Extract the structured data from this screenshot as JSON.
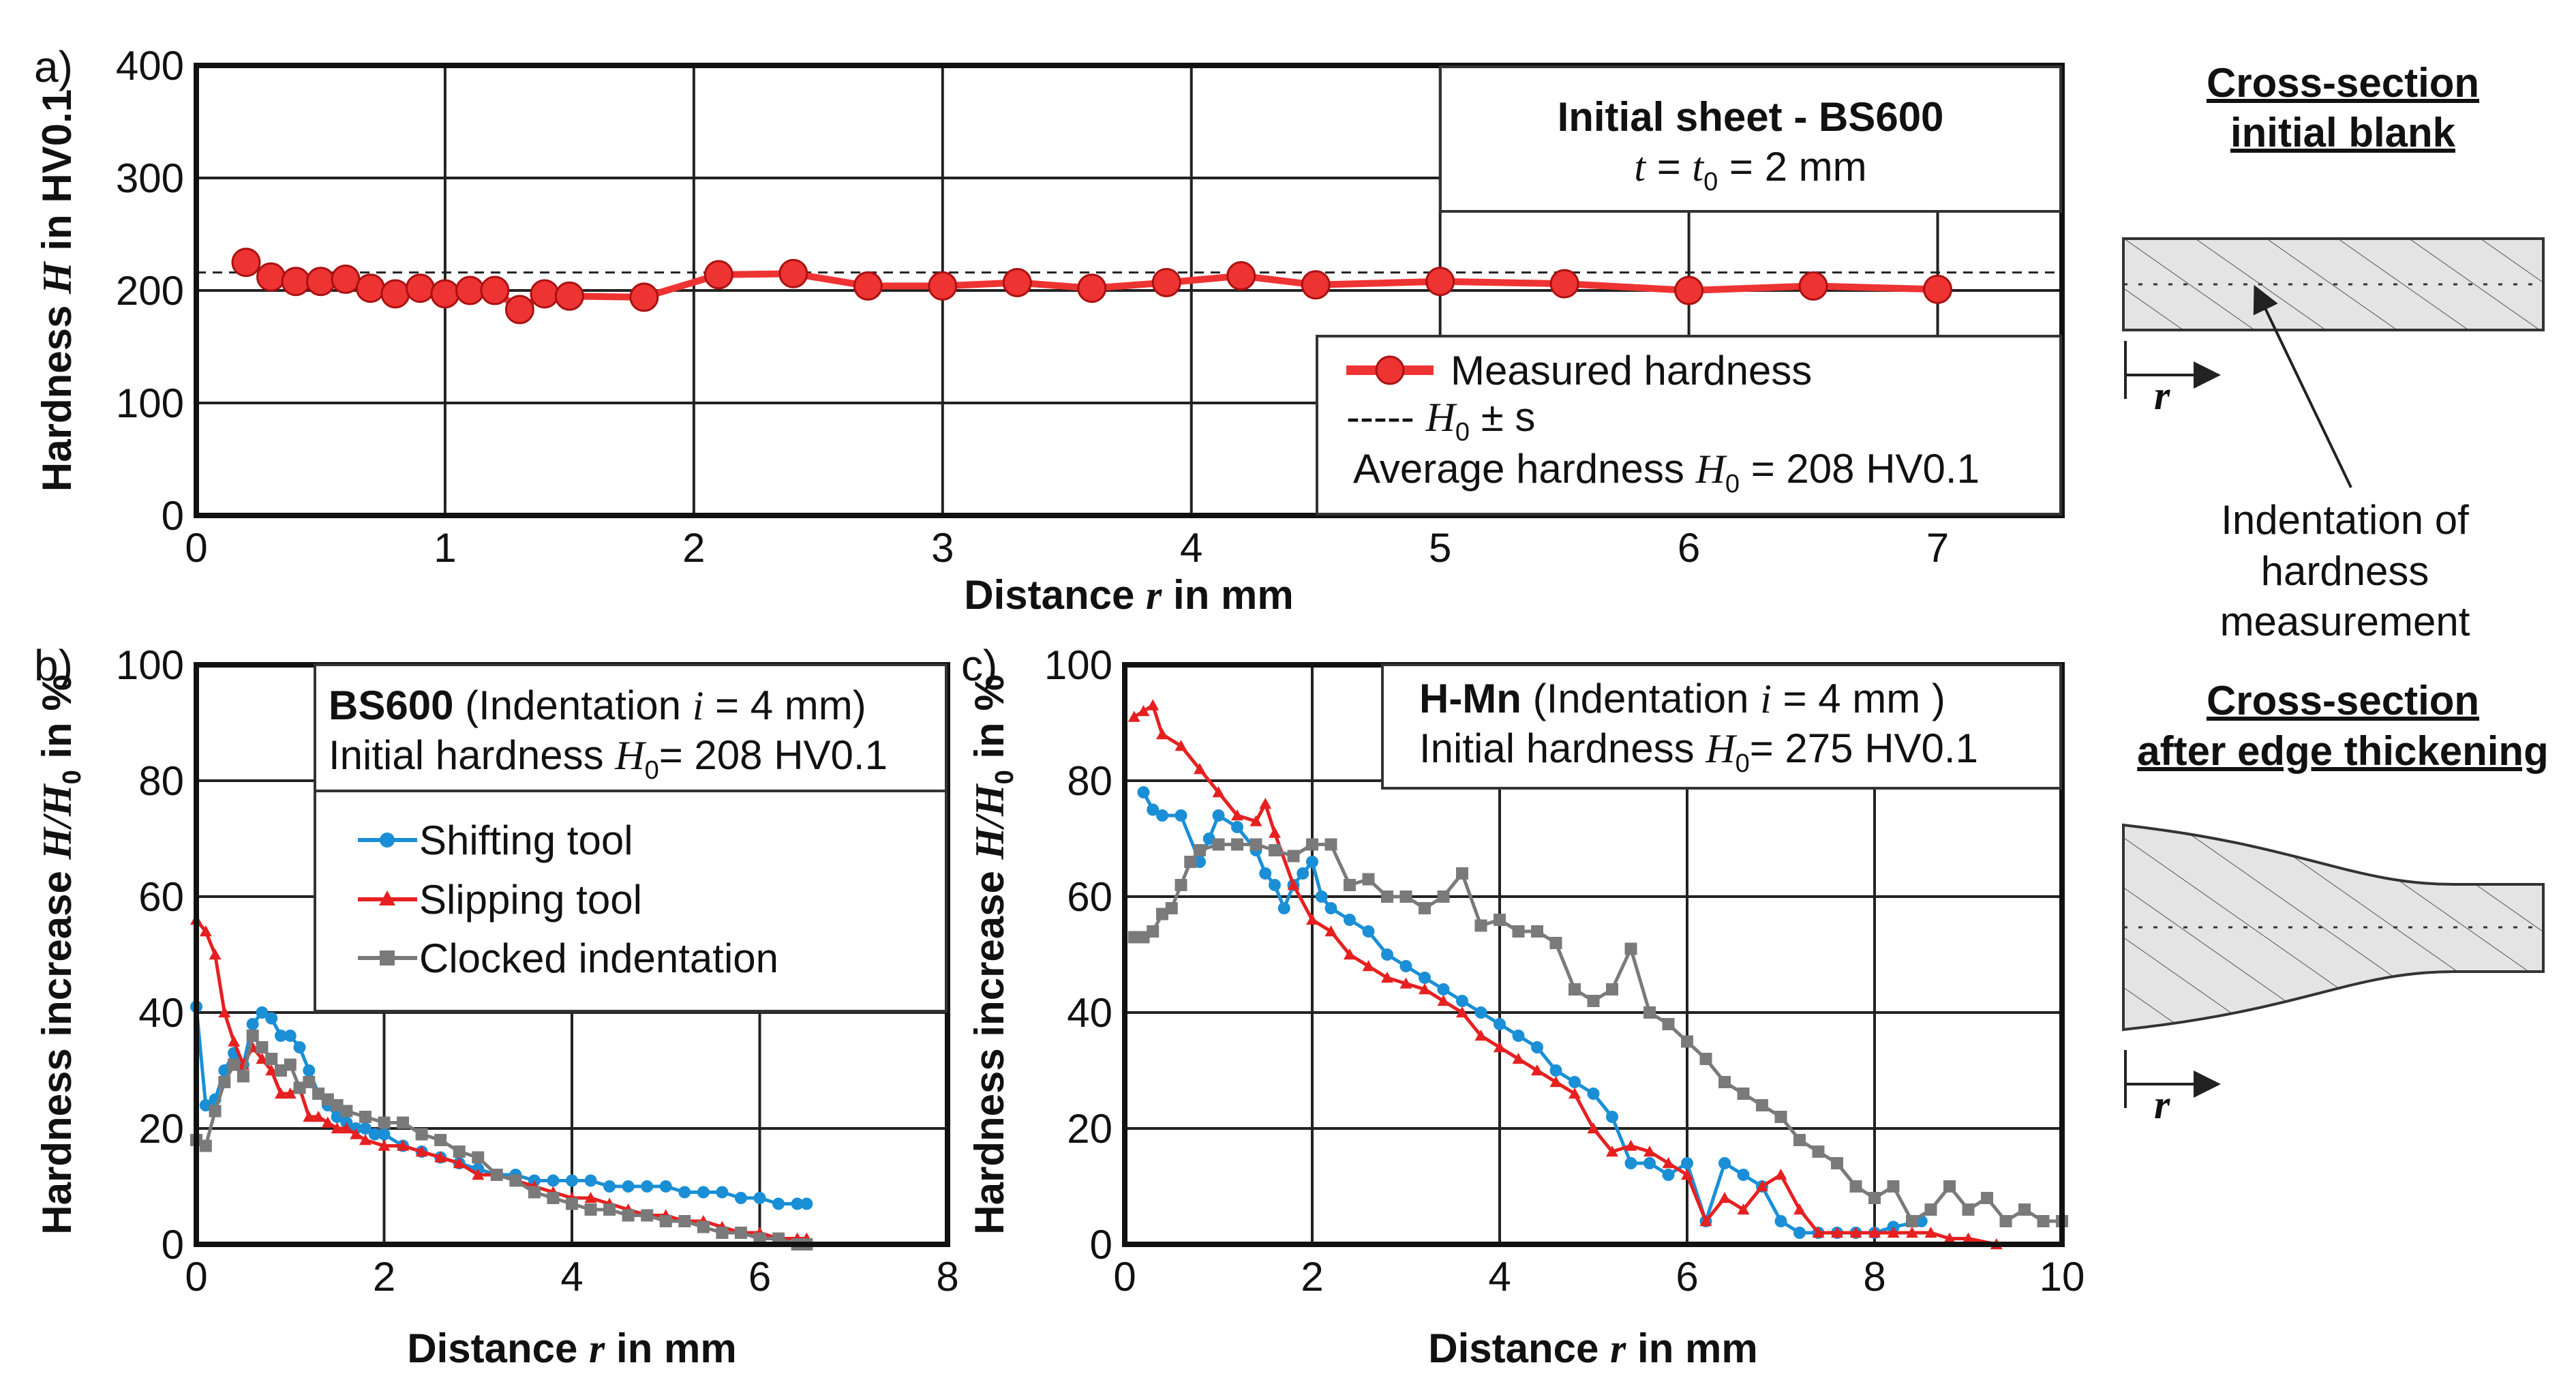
{
  "chart_data": [
    {
      "panel": "a)",
      "type": "line",
      "title": "Initial sheet - BS600",
      "subtitle": {
        "pre": "t = t",
        "sub": "0",
        "post": " = 2 mm"
      },
      "xlabel": {
        "pre": "Distance ",
        "var": "r",
        "post": " in mm"
      },
      "ylabel": {
        "pre": "Hardness ",
        "var": "H",
        "post": " in HV0.1"
      },
      "xlim": [
        0,
        7.5
      ],
      "ylim": [
        0,
        400
      ],
      "xticks": [
        "0",
        "1",
        "2",
        "3",
        "4",
        "5",
        "6",
        "7"
      ],
      "yticks": [
        "0",
        "100",
        "200",
        "300",
        "400"
      ],
      "grid": true,
      "legend_placement": "lower-right",
      "legend": {
        "measured": "Measured hardness",
        "band_pre": "----- ",
        "band_var": "H",
        "band_sub": "0",
        "band_post": " ± s",
        "avg_pre": "Average hardness ",
        "avg_var": "H",
        "avg_sub": "0",
        "avg_post": " = 208 HV0.1"
      },
      "average_hardness": 208,
      "band": [
        200,
        216
      ],
      "series": [
        {
          "name": "Measured hardness",
          "color": "#ee3333",
          "x": [
            0.2,
            0.3,
            0.4,
            0.5,
            0.6,
            0.7,
            0.8,
            0.9,
            1.0,
            1.1,
            1.2,
            1.3,
            1.4,
            1.5,
            1.8,
            2.1,
            2.4,
            2.7,
            3.0,
            3.3,
            3.6,
            3.9,
            4.2,
            4.5,
            5.0,
            5.5,
            6.0,
            6.5,
            7.0
          ],
          "y": [
            225,
            212,
            208,
            208,
            210,
            202,
            197,
            202,
            197,
            200,
            200,
            183,
            197,
            195,
            194,
            214,
            215,
            204,
            204,
            207,
            202,
            207,
            213,
            205,
            208,
            206,
            200,
            204,
            201
          ]
        }
      ]
    },
    {
      "panel": "b)",
      "type": "line",
      "title": "BS600",
      "title_post": " (Indentation ",
      "title_var": "i",
      "title_end": " = 4 mm)",
      "subtitle": {
        "pre": "Initial hardness ",
        "var": "H",
        "sub": "0",
        "post": "= 208 HV0.1"
      },
      "xlabel": {
        "pre": "Distance ",
        "var": "r",
        "post": " in mm"
      },
      "ylabel": {
        "pre": "Hardness increase ",
        "var": "H",
        "mid": "/",
        "var2": "H",
        "sub": "0",
        "post": " in %"
      },
      "xlim": [
        0,
        8
      ],
      "ylim": [
        0,
        100
      ],
      "xticks": [
        "0",
        "2",
        "4",
        "6",
        "8"
      ],
      "yticks": [
        "0",
        "20",
        "40",
        "60",
        "80",
        "100"
      ],
      "grid": true,
      "legend_placement": "top-center",
      "legend_labels": [
        "Shifting tool",
        "Slipping tool",
        "Clocked indentation"
      ],
      "series": [
        {
          "name": "Shifting tool",
          "color": "#1a8fd6",
          "marker": "circle",
          "x": [
            0,
            0.1,
            0.2,
            0.3,
            0.4,
            0.5,
            0.6,
            0.7,
            0.8,
            0.9,
            1.0,
            1.1,
            1.2,
            1.3,
            1.4,
            1.5,
            1.6,
            1.7,
            1.8,
            1.9,
            2.0,
            2.2,
            2.4,
            2.6,
            2.8,
            3.0,
            3.2,
            3.4,
            3.6,
            3.8,
            4.0,
            4.2,
            4.4,
            4.6,
            4.8,
            5.0,
            5.2,
            5.4,
            5.6,
            5.8,
            6.0,
            6.2,
            6.4,
            6.5
          ],
          "y": [
            41,
            24,
            25,
            30,
            33,
            31,
            38,
            40,
            39,
            36,
            36,
            34,
            30,
            26,
            24,
            22,
            21,
            20,
            20,
            19,
            19,
            17,
            16,
            15,
            14,
            13,
            12,
            12,
            11,
            11,
            11,
            11,
            10,
            10,
            10,
            10,
            9,
            9,
            9,
            8,
            8,
            7,
            7,
            7
          ]
        },
        {
          "name": "Slipping tool",
          "color": "#e62020",
          "marker": "triangle",
          "x": [
            0,
            0.1,
            0.2,
            0.3,
            0.4,
            0.5,
            0.6,
            0.7,
            0.8,
            0.9,
            1.0,
            1.1,
            1.2,
            1.3,
            1.4,
            1.5,
            1.6,
            1.7,
            1.8,
            2.0,
            2.2,
            2.4,
            2.6,
            2.8,
            3.0,
            3.2,
            3.4,
            3.6,
            3.8,
            4.0,
            4.2,
            4.4,
            4.6,
            4.8,
            5.0,
            5.2,
            5.4,
            5.6,
            5.8,
            6.0,
            6.2,
            6.4,
            6.5
          ],
          "y": [
            56,
            54,
            50,
            40,
            35,
            31,
            34,
            32,
            30,
            26,
            26,
            27,
            22,
            22,
            21,
            20,
            20,
            19,
            18,
            17,
            17,
            16,
            15,
            14,
            12,
            12,
            11,
            10,
            9,
            8,
            8,
            7,
            6,
            5,
            5,
            4,
            4,
            3,
            2,
            2,
            1,
            1,
            1
          ]
        },
        {
          "name": "Clocked indentation",
          "color": "#7a7a7a",
          "marker": "square",
          "x": [
            0,
            0.1,
            0.2,
            0.3,
            0.4,
            0.5,
            0.6,
            0.7,
            0.8,
            0.9,
            1.0,
            1.1,
            1.2,
            1.3,
            1.4,
            1.5,
            1.6,
            1.8,
            2.0,
            2.2,
            2.4,
            2.6,
            2.8,
            3.0,
            3.2,
            3.4,
            3.6,
            3.8,
            4.0,
            4.2,
            4.4,
            4.6,
            4.8,
            5.0,
            5.2,
            5.4,
            5.6,
            5.8,
            6.0,
            6.2,
            6.4,
            6.5
          ],
          "y": [
            18,
            17,
            23,
            28,
            31,
            29,
            36,
            34,
            32,
            30,
            31,
            27,
            28,
            26,
            25,
            24,
            23,
            22,
            21,
            21,
            19,
            18,
            16,
            15,
            12,
            11,
            9,
            8,
            7,
            6,
            6,
            5,
            5,
            4,
            4,
            3,
            2,
            2,
            1,
            1,
            0,
            0
          ]
        }
      ]
    },
    {
      "panel": "c)",
      "type": "line",
      "title": "H-Mn",
      "title_post": " (Indentation ",
      "title_var": "i",
      "title_end": " = 4 mm )",
      "subtitle": {
        "pre": "Initial hardness ",
        "var": "H",
        "sub": "0",
        "post": "= 275 HV0.1"
      },
      "xlabel": {
        "pre": "Distance ",
        "var": "r",
        "post": " in mm"
      },
      "ylabel": {
        "pre": "Hardness increase ",
        "var": "H",
        "mid": "/",
        "var2": "H",
        "sub": "0",
        "post": " in %"
      },
      "xlim": [
        0,
        10
      ],
      "ylim": [
        0,
        100
      ],
      "xticks": [
        "0",
        "2",
        "4",
        "6",
        "8",
        "10"
      ],
      "yticks": [
        "0",
        "20",
        "40",
        "60",
        "80",
        "100"
      ],
      "grid": true,
      "series": [
        {
          "name": "Shifting tool",
          "color": "#1a8fd6",
          "marker": "circle",
          "x": [
            0.2,
            0.3,
            0.4,
            0.6,
            0.8,
            0.9,
            1.0,
            1.2,
            1.4,
            1.5,
            1.6,
            1.7,
            1.8,
            1.9,
            2.0,
            2.1,
            2.2,
            2.4,
            2.6,
            2.8,
            3.0,
            3.2,
            3.4,
            3.6,
            3.8,
            4.0,
            4.2,
            4.4,
            4.6,
            4.8,
            5.0,
            5.2,
            5.4,
            5.6,
            5.8,
            6.0,
            6.2,
            6.4,
            6.6,
            6.8,
            7.0,
            7.2,
            7.4,
            7.6,
            7.8,
            8.0,
            8.2,
            8.5
          ],
          "y": [
            78,
            75,
            74,
            74,
            66,
            70,
            74,
            72,
            68,
            64,
            62,
            58,
            62,
            64,
            66,
            60,
            58,
            56,
            54,
            50,
            48,
            46,
            44,
            42,
            40,
            38,
            36,
            34,
            30,
            28,
            26,
            22,
            14,
            14,
            12,
            14,
            4,
            14,
            12,
            10,
            4,
            2,
            2,
            2,
            2,
            2,
            3,
            4
          ]
        },
        {
          "name": "Slipping tool",
          "color": "#e62020",
          "marker": "triangle",
          "x": [
            0.1,
            0.2,
            0.3,
            0.4,
            0.6,
            0.8,
            1.0,
            1.2,
            1.4,
            1.5,
            1.6,
            1.8,
            2.0,
            2.2,
            2.4,
            2.6,
            2.8,
            3.0,
            3.2,
            3.4,
            3.6,
            3.8,
            4.0,
            4.2,
            4.4,
            4.6,
            4.8,
            5.0,
            5.2,
            5.4,
            5.6,
            5.8,
            6.0,
            6.2,
            6.4,
            6.6,
            6.8,
            7.0,
            7.2,
            7.4,
            7.6,
            7.8,
            8.0,
            8.2,
            8.4,
            8.6,
            8.8,
            9.0,
            9.3
          ],
          "y": [
            91,
            92,
            93,
            88,
            86,
            82,
            78,
            74,
            73,
            76,
            71,
            62,
            56,
            54,
            50,
            48,
            46,
            45,
            44,
            42,
            40,
            36,
            34,
            32,
            30,
            28,
            26,
            20,
            16,
            17,
            16,
            14,
            12,
            4,
            8,
            6,
            10,
            12,
            6,
            2,
            2,
            2,
            2,
            2,
            2,
            2,
            1,
            1,
            0
          ]
        },
        {
          "name": "Clocked indentation",
          "color": "#7a7a7a",
          "marker": "square",
          "x": [
            0.1,
            0.2,
            0.3,
            0.4,
            0.5,
            0.6,
            0.7,
            0.8,
            1.0,
            1.2,
            1.4,
            1.6,
            1.8,
            2.0,
            2.2,
            2.4,
            2.6,
            2.8,
            3.0,
            3.2,
            3.4,
            3.6,
            3.8,
            4.0,
            4.2,
            4.4,
            4.6,
            4.8,
            5.0,
            5.2,
            5.4,
            5.6,
            5.8,
            6.0,
            6.2,
            6.4,
            6.6,
            6.8,
            7.0,
            7.2,
            7.4,
            7.6,
            7.8,
            8.0,
            8.2,
            8.4,
            8.6,
            8.8,
            9.0,
            9.2,
            9.4,
            9.6,
            9.8,
            10.0
          ],
          "y": [
            53,
            53,
            54,
            57,
            58,
            62,
            66,
            68,
            69,
            69,
            69,
            68,
            67,
            69,
            69,
            62,
            63,
            60,
            60,
            58,
            60,
            64,
            55,
            56,
            54,
            54,
            52,
            44,
            42,
            44,
            51,
            40,
            38,
            35,
            32,
            28,
            26,
            24,
            22,
            18,
            16,
            14,
            10,
            8,
            10,
            4,
            6,
            10,
            6,
            8,
            4,
            6,
            4,
            4
          ]
        }
      ]
    }
  ],
  "schematics": {
    "top_title_line1": "Cross-section",
    "top_title_line2": "initial blank",
    "axis_label": "r",
    "indentation_label_line1": "Indentation of",
    "indentation_label_line2": "hardness",
    "indentation_label_line3": "measurement",
    "bottom_title_line1": "Cross-section",
    "bottom_title_line2": "after edge thickening"
  }
}
